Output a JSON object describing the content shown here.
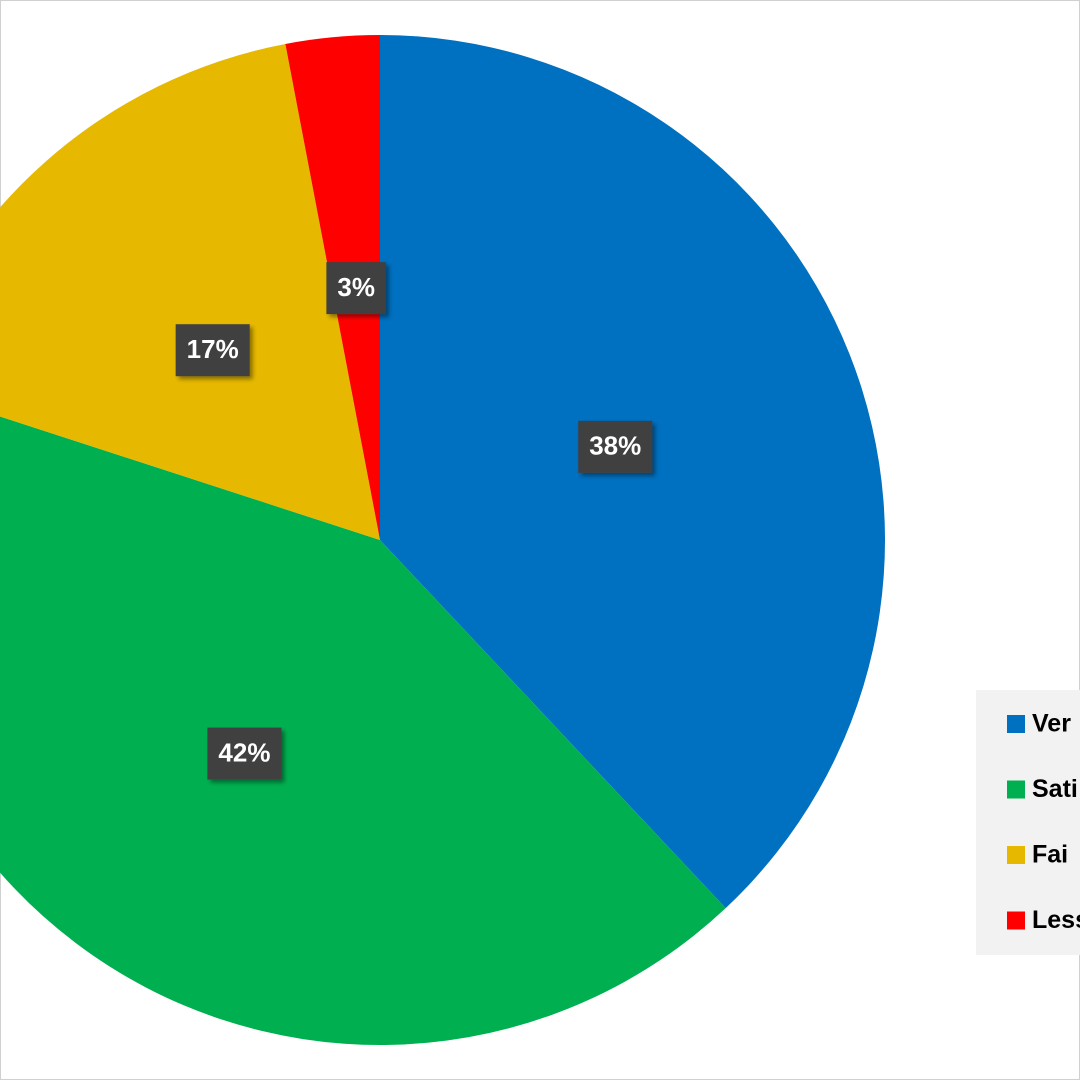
{
  "chart_data": {
    "type": "pie",
    "categories": [
      "Ver",
      "Sati",
      "Fai",
      "Less"
    ],
    "values": [
      38,
      42,
      17,
      3
    ],
    "value_labels": [
      "38%",
      "42%",
      "17%",
      "3%"
    ],
    "colors": [
      "#0070c0",
      "#00b050",
      "#e6b800",
      "#ff0000"
    ],
    "legend": "right"
  }
}
